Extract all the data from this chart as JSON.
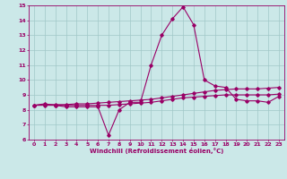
{
  "title": "",
  "xlabel": "Windchill (Refroidissement éolien,°C)",
  "ylabel": "",
  "background_color": "#cbe8e8",
  "grid_color": "#a0c8c8",
  "line_color": "#990066",
  "xlim": [
    -0.5,
    23.5
  ],
  "ylim": [
    6,
    15
  ],
  "xticks": [
    0,
    1,
    2,
    3,
    4,
    5,
    6,
    7,
    8,
    9,
    10,
    11,
    12,
    13,
    14,
    15,
    16,
    17,
    18,
    19,
    20,
    21,
    22,
    23
  ],
  "yticks": [
    6,
    7,
    8,
    9,
    10,
    11,
    12,
    13,
    14,
    15
  ],
  "series1_x": [
    0,
    1,
    2,
    3,
    4,
    5,
    6,
    7,
    8,
    9,
    10,
    11,
    12,
    13,
    14,
    15,
    16,
    17,
    18,
    19,
    20,
    21,
    22,
    23
  ],
  "series1_y": [
    8.3,
    8.4,
    8.3,
    8.2,
    8.2,
    8.2,
    8.2,
    6.3,
    8.0,
    8.5,
    8.5,
    11.0,
    13.0,
    14.1,
    14.9,
    13.7,
    10.0,
    9.6,
    9.5,
    8.7,
    8.6,
    8.6,
    8.5,
    8.9
  ],
  "series2_x": [
    0,
    1,
    2,
    3,
    4,
    5,
    6,
    7,
    8,
    9,
    10,
    11,
    12,
    13,
    14,
    15,
    16,
    17,
    18,
    19,
    20,
    21,
    22,
    23
  ],
  "series2_y": [
    8.3,
    8.35,
    8.35,
    8.35,
    8.4,
    8.4,
    8.45,
    8.5,
    8.55,
    8.6,
    8.65,
    8.7,
    8.8,
    8.9,
    9.0,
    9.1,
    9.2,
    9.3,
    9.35,
    9.4,
    9.4,
    9.4,
    9.45,
    9.5
  ],
  "series3_x": [
    0,
    1,
    2,
    3,
    4,
    5,
    6,
    7,
    8,
    9,
    10,
    11,
    12,
    13,
    14,
    15,
    16,
    17,
    18,
    19,
    20,
    21,
    22,
    23
  ],
  "series3_y": [
    8.3,
    8.3,
    8.3,
    8.3,
    8.3,
    8.3,
    8.3,
    8.3,
    8.35,
    8.4,
    8.45,
    8.5,
    8.6,
    8.7,
    8.8,
    8.85,
    8.9,
    8.95,
    9.0,
    9.0,
    9.0,
    9.0,
    9.0,
    9.05
  ],
  "marker": "D",
  "markersize": 1.8,
  "linewidth": 0.8
}
